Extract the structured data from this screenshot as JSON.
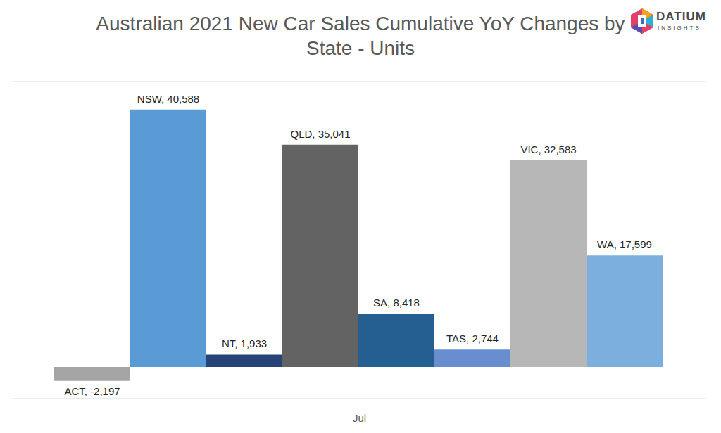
{
  "chart_data": {
    "type": "bar",
    "title": "Australian 2021 New Car Sales Cumulative YoY Changes by State - Units",
    "annotations": [
      "DATIUM",
      "INSIGHTS"
    ],
    "categories": [
      "Jul"
    ],
    "series": [
      {
        "name": "ACT",
        "color": "#a5a5a5",
        "values": [
          -2197
        ],
        "value_labels": [
          "ACT, -2,197"
        ]
      },
      {
        "name": "NSW",
        "color": "#5b9bd5",
        "values": [
          40588
        ],
        "value_labels": [
          "NSW, 40,588"
        ]
      },
      {
        "name": "NT",
        "color": "#264478",
        "values": [
          1933
        ],
        "value_labels": [
          "NT, 1,933"
        ]
      },
      {
        "name": "QLD",
        "color": "#636363",
        "values": [
          35041
        ],
        "value_labels": [
          "QLD, 35,041"
        ]
      },
      {
        "name": "SA",
        "color": "#255e91",
        "values": [
          8418
        ],
        "value_labels": [
          "SA, 8,418"
        ]
      },
      {
        "name": "TAS",
        "color": "#698ed0",
        "values": [
          2744
        ],
        "value_labels": [
          "TAS, 2,744"
        ]
      },
      {
        "name": "VIC",
        "color": "#b7b7b7",
        "values": [
          32583
        ],
        "value_labels": [
          "VIC, 32,583"
        ]
      },
      {
        "name": "WA",
        "color": "#7cafdd",
        "values": [
          17599
        ],
        "value_labels": [
          "WA, 17,599"
        ]
      }
    ],
    "ylim": [
      -5000,
      45000
    ],
    "yticks": [
      0
    ],
    "grid": true,
    "data_labels": true,
    "tick_labels": "x"
  }
}
